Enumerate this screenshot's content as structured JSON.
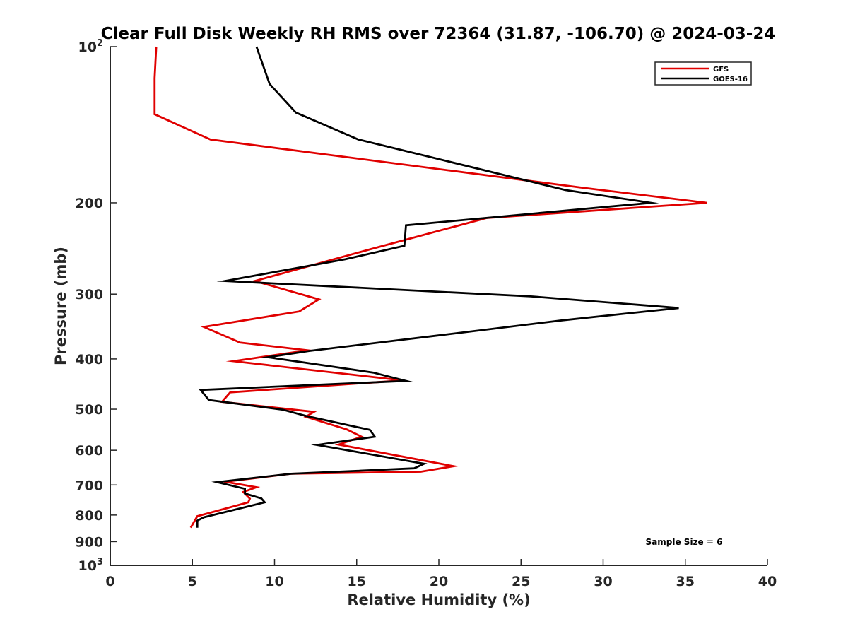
{
  "chart_data": {
    "type": "line",
    "title": "Clear Full Disk Weekly RH RMS over 72364 (31.87, -106.70) @ 2024-03-24",
    "xlabel": "Relative Humidity (%)",
    "ylabel": "Pressure (mb)",
    "xlim": [
      0,
      40
    ],
    "ylim": [
      100,
      1000
    ],
    "y_scale": "log",
    "y_reversed": true,
    "grid": false,
    "legend_position": "top-right",
    "x_ticks": [
      0,
      5,
      10,
      15,
      20,
      25,
      30,
      35,
      40
    ],
    "y_ticks": [
      {
        "value": 100,
        "label": "10",
        "sup": "2"
      },
      {
        "value": 200,
        "label": "200",
        "sup": ""
      },
      {
        "value": 300,
        "label": "300",
        "sup": ""
      },
      {
        "value": 400,
        "label": "400",
        "sup": ""
      },
      {
        "value": 500,
        "label": "500",
        "sup": ""
      },
      {
        "value": 600,
        "label": "600",
        "sup": ""
      },
      {
        "value": 700,
        "label": "700",
        "sup": ""
      },
      {
        "value": 800,
        "label": "800",
        "sup": ""
      },
      {
        "value": 900,
        "label": "900",
        "sup": ""
      },
      {
        "value": 1000,
        "label": "10",
        "sup": "3"
      }
    ],
    "annotation": "Sample Size = 6",
    "series": [
      {
        "name": "GFS",
        "color": "#e00000",
        "points": [
          [
            2.8,
            100
          ],
          [
            2.7,
            115
          ],
          [
            2.7,
            125
          ],
          [
            2.7,
            135
          ],
          [
            6.1,
            151
          ],
          [
            28.7,
            187
          ],
          [
            36.3,
            200
          ],
          [
            22.9,
            214
          ],
          [
            15.8,
            246
          ],
          [
            8.8,
            283
          ],
          [
            12.7,
            307
          ],
          [
            11.5,
            324
          ],
          [
            5.7,
            347
          ],
          [
            7.9,
            372
          ],
          [
            12.0,
            385
          ],
          [
            7.5,
            404
          ],
          [
            17.8,
            440
          ],
          [
            7.3,
            464
          ],
          [
            6.8,
            484
          ],
          [
            12.4,
            506
          ],
          [
            11.9,
            517
          ],
          [
            14.4,
            547
          ],
          [
            15.3,
            565
          ],
          [
            13.9,
            585
          ],
          [
            20.9,
            644
          ],
          [
            18.9,
            660
          ],
          [
            11.0,
            666
          ],
          [
            7.0,
            690
          ],
          [
            8.9,
            707
          ],
          [
            8.1,
            722
          ],
          [
            8.5,
            744
          ],
          [
            8.4,
            756
          ],
          [
            5.3,
            804
          ],
          [
            4.9,
            846
          ]
        ]
      },
      {
        "name": "GOES-16",
        "color": "#000000",
        "points": [
          [
            8.9,
            100
          ],
          [
            9.7,
            118
          ],
          [
            11.3,
            134
          ],
          [
            15.1,
            151
          ],
          [
            27.7,
            189
          ],
          [
            32.9,
            200
          ],
          [
            18.0,
            221
          ],
          [
            17.9,
            242
          ],
          [
            14.3,
            257
          ],
          [
            7.0,
            283
          ],
          [
            25.6,
            303
          ],
          [
            34.6,
            319
          ],
          [
            27.5,
            337
          ],
          [
            20.1,
            360
          ],
          [
            12.1,
            386
          ],
          [
            9.6,
            397
          ],
          [
            16.0,
            425
          ],
          [
            18.0,
            441
          ],
          [
            5.5,
            459
          ],
          [
            6.0,
            480
          ],
          [
            10.5,
            501
          ],
          [
            11.9,
            515
          ],
          [
            15.8,
            548
          ],
          [
            16.1,
            565
          ],
          [
            12.6,
            586
          ],
          [
            19.1,
            637
          ],
          [
            18.5,
            650
          ],
          [
            11.0,
            666
          ],
          [
            6.5,
            691
          ],
          [
            8.2,
            712
          ],
          [
            8.2,
            727
          ],
          [
            9.2,
            743
          ],
          [
            9.4,
            756
          ],
          [
            5.7,
            808
          ],
          [
            5.3,
            820
          ],
          [
            5.3,
            846
          ]
        ]
      }
    ]
  }
}
